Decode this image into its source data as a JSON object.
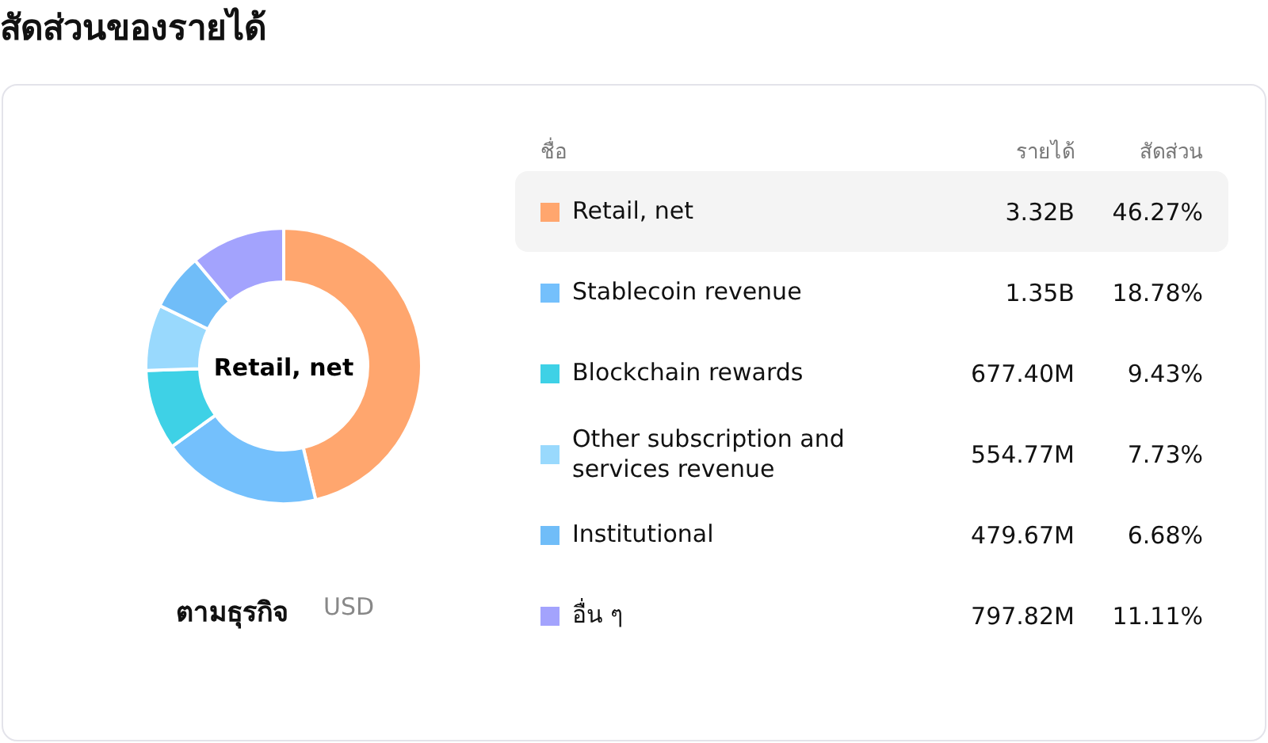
{
  "chart_data": {
    "type": "donut",
    "title": "สัดส่วนของรายได้",
    "subtitle": "ตามธุรกิจ",
    "legend_title": "ชื่อ",
    "legend": "right",
    "categories": [
      "Retail, net",
      "Stablecoin revenue",
      "Blockchain rewards",
      "Other subscription and services revenue",
      "Institutional",
      "อื่น ๆ"
    ],
    "values": [
      46.27,
      18.78,
      9.43,
      7.73,
      6.68,
      11.11
    ],
    "colors": [
      "#ffa66e",
      "#74c0fc",
      "#3ed1e6",
      "#99d9fd",
      "#70bdf8",
      "#a3a3fd"
    ],
    "value_labels": [
      "46.27%",
      "18.78%",
      "9.43%",
      "7.73%",
      "6.68%",
      "11.11%"
    ],
    "annotations": [
      "Retail, net",
      "USD",
      "รายได้",
      "สัดส่วน",
      {
        "text": "3.32B",
        "x": "Retail, net"
      },
      {
        "text": "1.35B",
        "x": "Stablecoin revenue"
      },
      {
        "text": "677.40M",
        "x": "Blockchain rewards"
      },
      {
        "text": "554.77M",
        "x": "Other subscription and services revenue"
      },
      {
        "text": "479.67M",
        "x": "Institutional"
      },
      {
        "text": "797.82M",
        "x": "อื่น ๆ"
      }
    ]
  }
}
